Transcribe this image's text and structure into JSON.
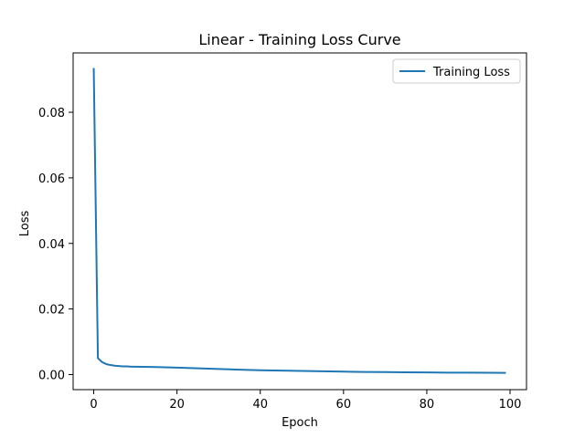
{
  "chart_data": {
    "type": "line",
    "title": "Linear - Training Loss Curve",
    "xlabel": "Epoch",
    "ylabel": "Loss",
    "xlim": [
      -4.95,
      103.95
    ],
    "ylim": [
      -0.0046,
      0.0981
    ],
    "x_ticks": [
      0,
      20,
      40,
      60,
      80,
      100
    ],
    "y_ticks": [
      0.0,
      0.02,
      0.04,
      0.06,
      0.08
    ],
    "grid": false,
    "legend": {
      "position": "top-right"
    },
    "series": [
      {
        "name": "Training Loss",
        "color": "#1f77b4",
        "x": [
          0,
          1,
          2,
          3,
          4,
          5,
          6,
          7,
          8,
          9,
          10,
          15,
          20,
          25,
          30,
          35,
          40,
          45,
          50,
          55,
          60,
          65,
          70,
          75,
          80,
          85,
          90,
          95,
          99
        ],
        "y": [
          0.0935,
          0.005,
          0.0038,
          0.0032,
          0.0029,
          0.0027,
          0.0026,
          0.0025,
          0.0025,
          0.0024,
          0.0024,
          0.0023,
          0.0021,
          0.0019,
          0.0017,
          0.0015,
          0.0013,
          0.0012,
          0.0011,
          0.001,
          0.0009,
          0.0008,
          0.00075,
          0.0007,
          0.00065,
          0.0006,
          0.00058,
          0.00055,
          0.0005
        ]
      }
    ]
  }
}
